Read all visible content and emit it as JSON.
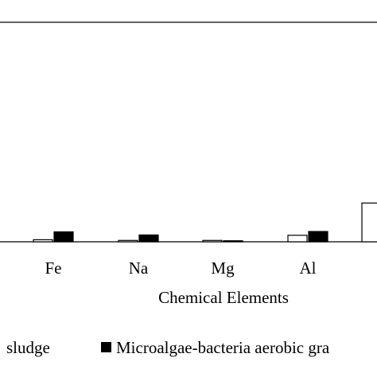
{
  "chart_data": {
    "type": "bar",
    "xlabel": "Chemical Elements",
    "categories": [
      "Fe",
      "Na",
      "Mg",
      "Al",
      ""
    ],
    "series": [
      {
        "name": "sludge",
        "fill": "#ffffff",
        "stroke": "#000000",
        "values": [
          0.6,
          0.4,
          0.4,
          1.9,
          11.3
        ]
      },
      {
        "name": "Microalgae-bacteria aerobic gra",
        "fill": "#000000",
        "stroke": "#000000",
        "values": [
          2.9,
          2.0,
          0.3,
          3.0,
          0
        ]
      }
    ],
    "ylim": [
      0,
      64
    ],
    "legend_position": "bottom",
    "grid": false
  }
}
